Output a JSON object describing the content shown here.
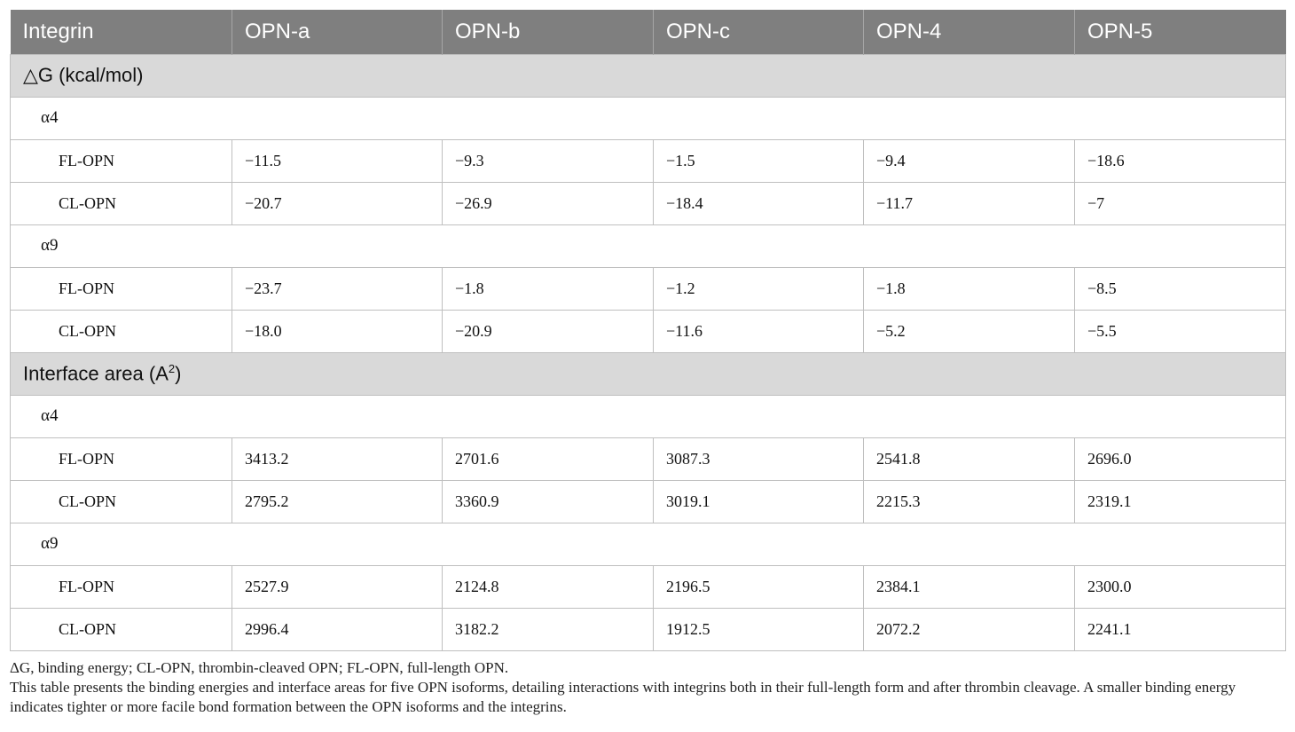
{
  "table": {
    "columns": [
      "Integrin",
      "OPN-a",
      "OPN-b",
      "OPN-c",
      "OPN-4",
      "OPN-5"
    ],
    "sections": [
      {
        "title": "△G (kcal/mol)",
        "groups": [
          {
            "name": "α4",
            "rows": [
              {
                "label": "FL-OPN",
                "values": [
                  "−11.5",
                  "−9.3",
                  "−1.5",
                  "−9.4",
                  "−18.6"
                ]
              },
              {
                "label": "CL-OPN",
                "values": [
                  "−20.7",
                  "−26.9",
                  "−18.4",
                  "−11.7",
                  "−7"
                ]
              }
            ]
          },
          {
            "name": "α9",
            "rows": [
              {
                "label": "FL-OPN",
                "values": [
                  "−23.7",
                  "−1.8",
                  "−1.2",
                  "−1.8",
                  "−8.5"
                ]
              },
              {
                "label": "CL-OPN",
                "values": [
                  "−18.0",
                  "−20.9",
                  "−11.6",
                  "−5.2",
                  "−5.5"
                ]
              }
            ]
          }
        ]
      },
      {
        "title": "Interface area (A",
        "title_sup": "2",
        "title_suffix": ")",
        "groups": [
          {
            "name": "α4",
            "rows": [
              {
                "label": "FL-OPN",
                "values": [
                  "3413.2",
                  "2701.6",
                  "3087.3",
                  "2541.8",
                  "2696.0"
                ]
              },
              {
                "label": "CL-OPN",
                "values": [
                  "2795.2",
                  "3360.9",
                  "3019.1",
                  "2215.3",
                  "2319.1"
                ]
              }
            ]
          },
          {
            "name": "α9",
            "rows": [
              {
                "label": "FL-OPN",
                "values": [
                  "2527.9",
                  "2124.8",
                  "2196.5",
                  "2384.1",
                  "2300.0"
                ]
              },
              {
                "label": "CL-OPN",
                "values": [
                  "2996.4",
                  "3182.2",
                  "1912.5",
                  "2072.2",
                  "2241.1"
                ]
              }
            ]
          }
        ]
      }
    ]
  },
  "footnotes": {
    "abbreviations": "ΔG, binding energy; CL-OPN, thrombin-cleaved OPN; FL-OPN, full-length OPN.",
    "description": "This table presents the binding energies and interface areas for five OPN isoforms, detailing interactions with integrins both in their full-length form and after thrombin cleavage. A smaller binding energy indicates tighter or more facile bond formation between the OPN isoforms and the integrins."
  }
}
